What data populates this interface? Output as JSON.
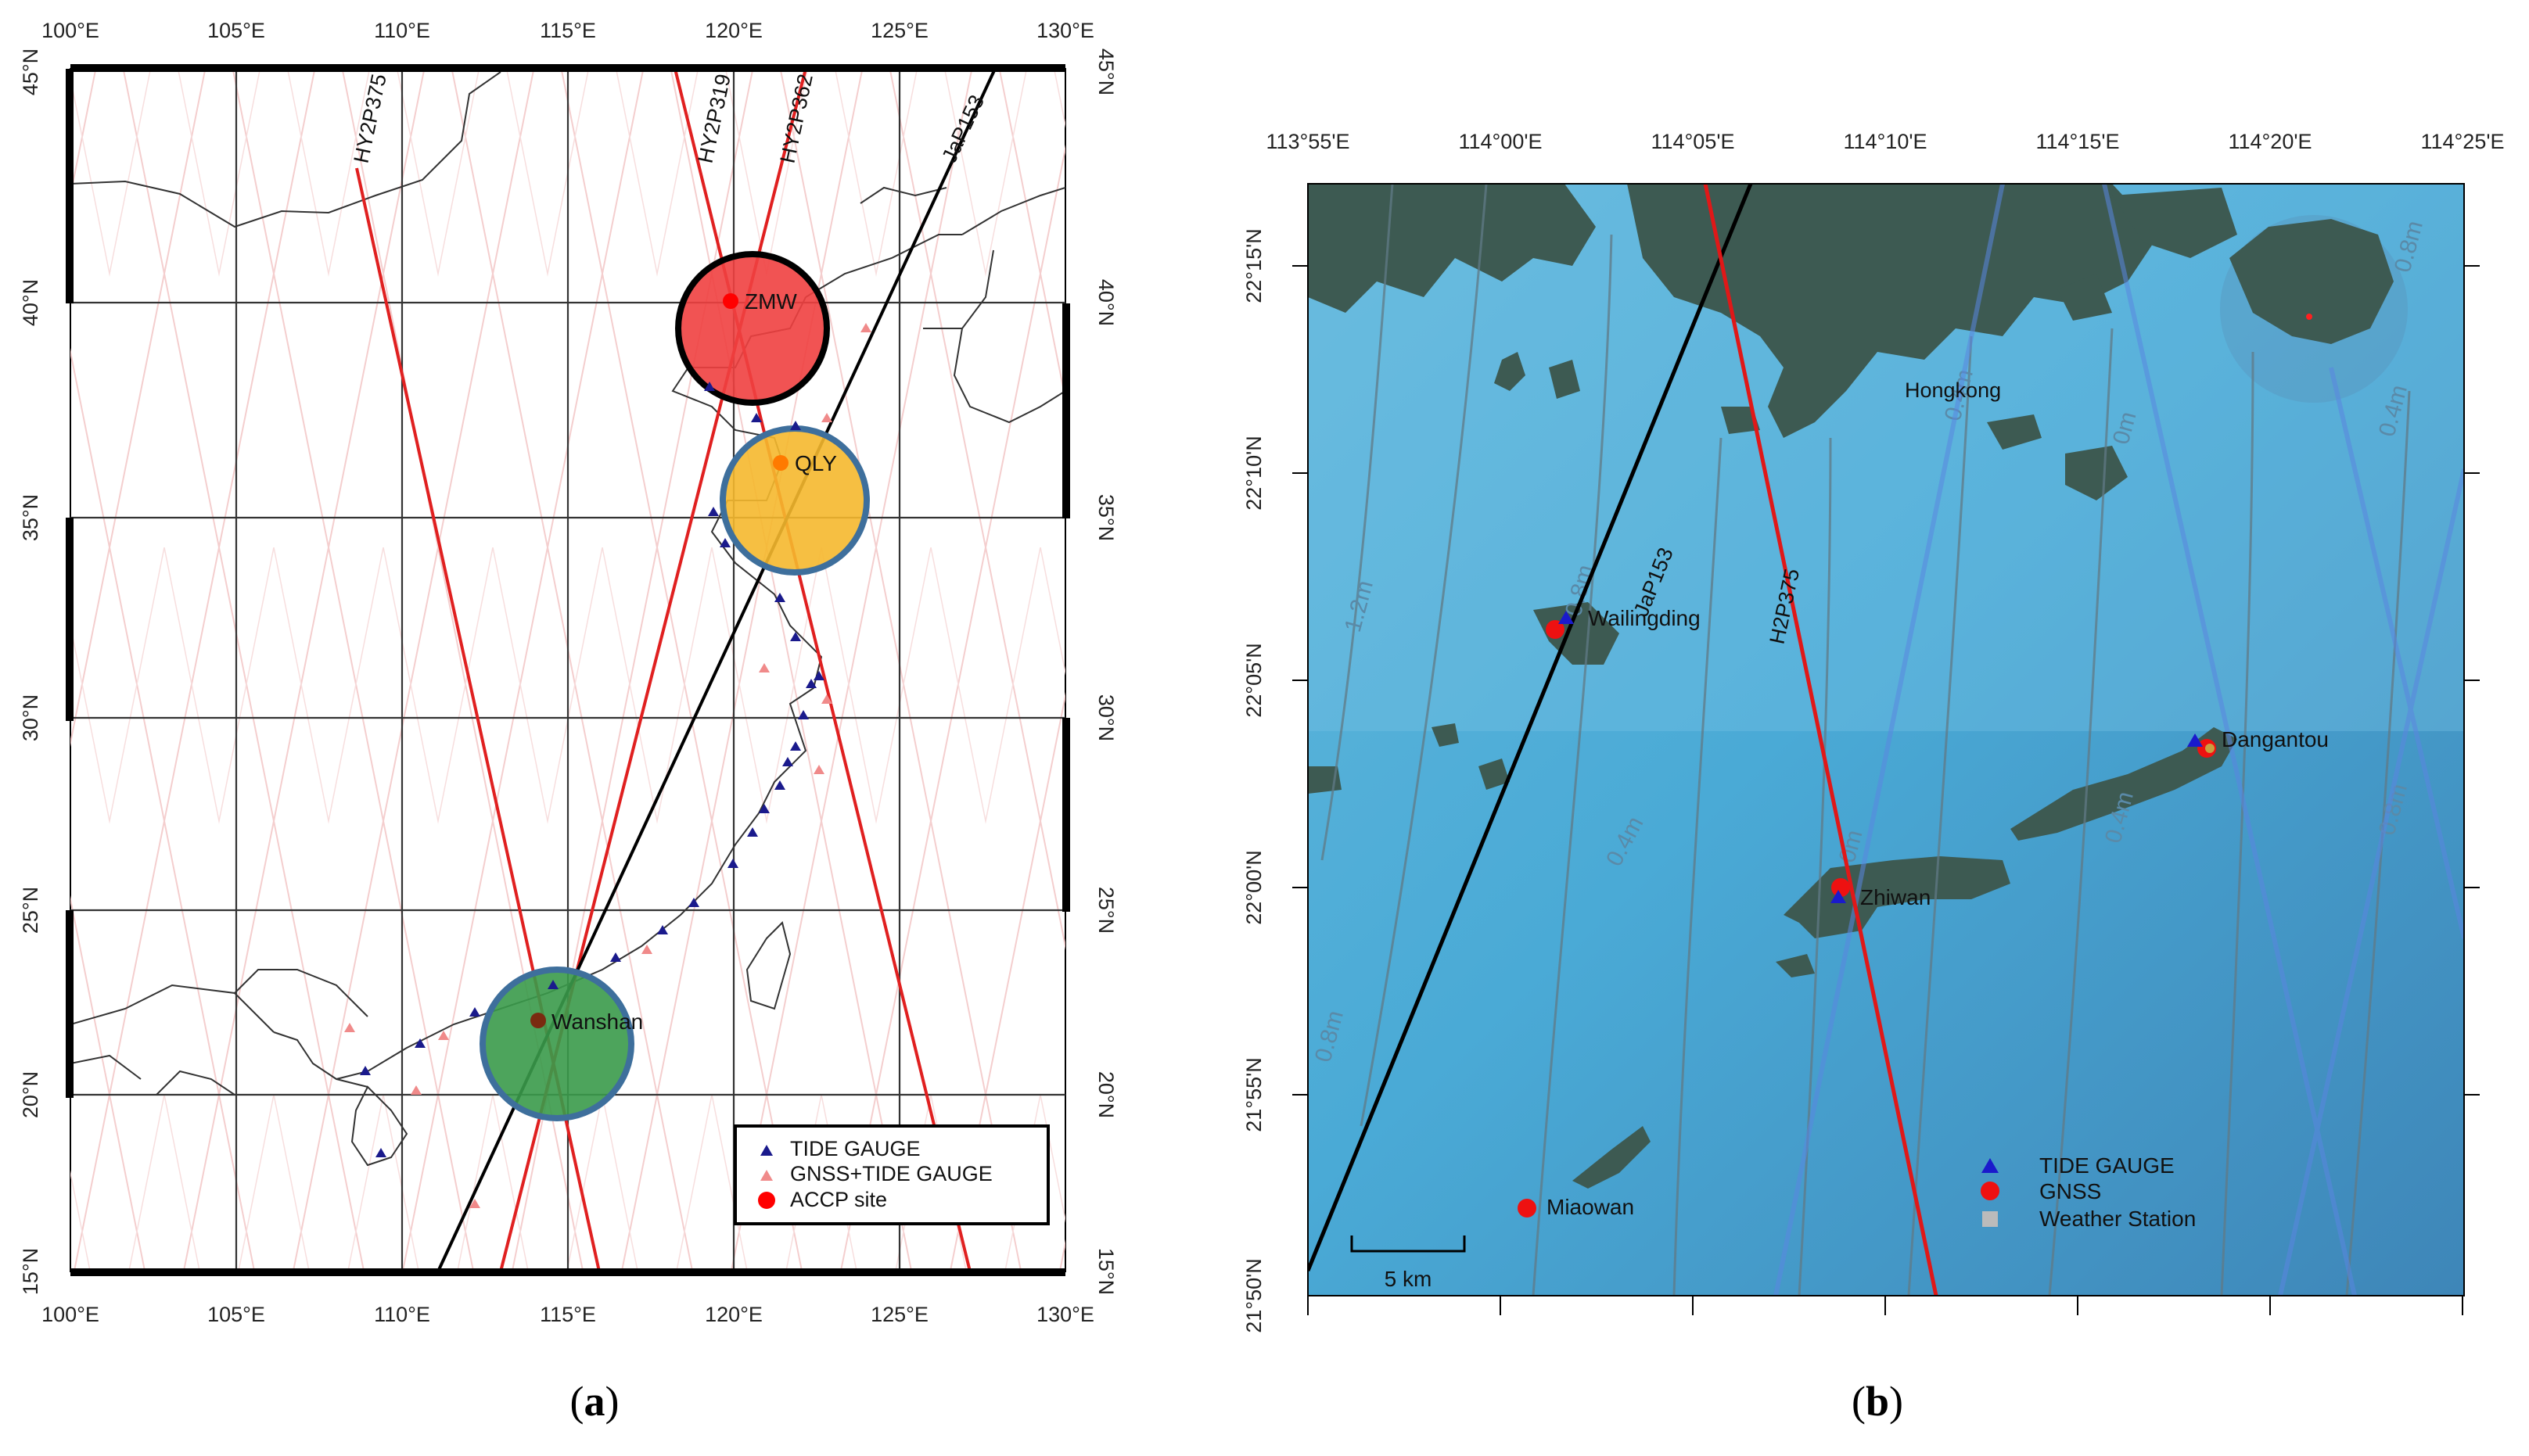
{
  "panel_a": {
    "caption_letter": "a",
    "lon_ticks": [
      "100°E",
      "105°E",
      "110°E",
      "115°E",
      "120°E",
      "125°E",
      "130°E"
    ],
    "lat_ticks": [
      "15°N",
      "20°N",
      "25°N",
      "30°N",
      "35°N",
      "40°N",
      "45°N"
    ],
    "tracks": [
      {
        "name": "HY2P375",
        "color": "#e02020"
      },
      {
        "name": "HY2P319",
        "color": "#e02020"
      },
      {
        "name": "HY2P362",
        "color": "#e02020"
      },
      {
        "name": "JaP153",
        "color": "#000000"
      }
    ],
    "sites": [
      {
        "name": "ZMW",
        "color": "#f04040"
      },
      {
        "name": "QLY",
        "color": "#f5b82e"
      },
      {
        "name": "Wanshan",
        "color": "#3a9a4a"
      }
    ],
    "legend": [
      {
        "label": "TIDE GAUGE",
        "symbol": "triangle",
        "color": "#1a1a8c"
      },
      {
        "label": "GNSS+TIDE GAUGE",
        "symbol": "triangle",
        "color": "#f08a8a"
      },
      {
        "label": "ACCP site",
        "symbol": "circle",
        "color": "#ff0000"
      }
    ]
  },
  "panel_b": {
    "caption_letter": "b",
    "lon_ticks": [
      "113°55'E",
      "114°00'E",
      "114°05'E",
      "114°10'E",
      "114°15'E",
      "114°20'E",
      "114°25'E"
    ],
    "lat_ticks": [
      "21°50'N",
      "21°55'N",
      "22°00'N",
      "22°05'N",
      "22°10'N",
      "22°15'N"
    ],
    "tracks": [
      {
        "name": "JaP153",
        "color": "#000000"
      },
      {
        "name": "H2P375",
        "color": "#e02020"
      }
    ],
    "place_labels": [
      "Hongkong"
    ],
    "stations": [
      {
        "name": "Wailingding"
      },
      {
        "name": "Dangantou"
      },
      {
        "name": "Zhiwan"
      },
      {
        "name": "Miaowan"
      }
    ],
    "contour_labels": [
      "1.2m",
      "0.8m",
      "0.4m",
      "0m",
      "0.4m",
      "0.8m",
      "0.8m",
      "0.4m",
      "0m",
      "0.4m",
      "0.8m"
    ],
    "scale_bar": "5 km",
    "legend": [
      {
        "label": "TIDE GAUGE",
        "symbol": "triangle",
        "color": "#1a1acc"
      },
      {
        "label": "GNSS",
        "symbol": "circle",
        "color": "#ee1111"
      },
      {
        "label": "Weather Station",
        "symbol": "square",
        "color": "#bbbbbb"
      }
    ]
  }
}
